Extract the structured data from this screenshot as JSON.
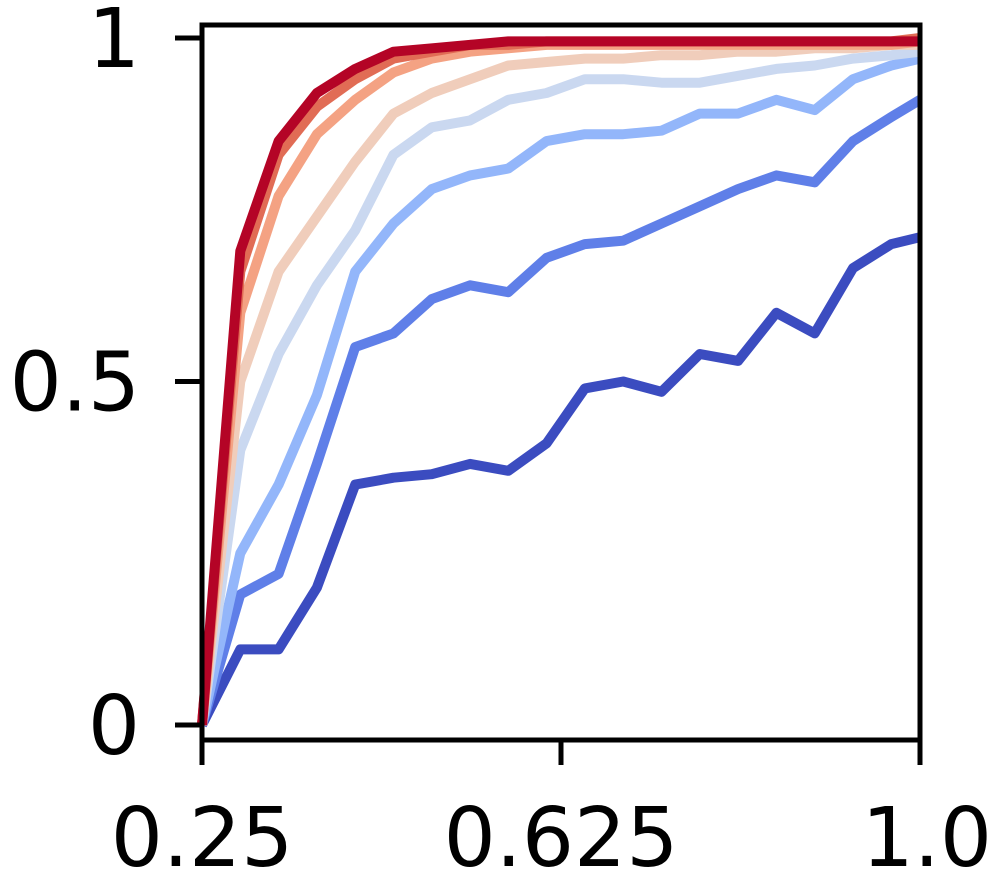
{
  "chart_data": {
    "type": "line",
    "title": "",
    "xlabel": "",
    "ylabel": "",
    "xlim": [
      0.25,
      1.0
    ],
    "ylim": [
      0,
      1
    ],
    "x_ticks": [
      {
        "value": 0.25,
        "label": "0.25"
      },
      {
        "value": 0.625,
        "label": "0.625"
      },
      {
        "value": 1.0,
        "label": "1.0"
      }
    ],
    "y_ticks": [
      {
        "value": 0,
        "label": "0"
      },
      {
        "value": 0.5,
        "label": "0.5"
      },
      {
        "value": 1,
        "label": "1"
      }
    ],
    "grid": false,
    "legend": "none",
    "x": [
      0.25,
      0.29,
      0.33,
      0.37,
      0.41,
      0.45,
      0.49,
      0.53,
      0.57,
      0.61,
      0.65,
      0.69,
      0.73,
      0.77,
      0.81,
      0.85,
      0.89,
      0.93,
      0.97,
      1.0
    ],
    "series": [
      {
        "color": "#3b4cc0",
        "values": [
          0.0,
          0.11,
          0.11,
          0.2,
          0.35,
          0.36,
          0.365,
          0.38,
          0.37,
          0.41,
          0.49,
          0.5,
          0.485,
          0.54,
          0.53,
          0.6,
          0.57,
          0.665,
          0.7,
          0.71
        ]
      },
      {
        "color": "#5f7fe8",
        "values": [
          0.0,
          0.19,
          0.22,
          0.38,
          0.55,
          0.57,
          0.62,
          0.64,
          0.63,
          0.68,
          0.7,
          0.705,
          0.73,
          0.755,
          0.78,
          0.8,
          0.79,
          0.85,
          0.885,
          0.91
        ]
      },
      {
        "color": "#93b6fa",
        "values": [
          0.0,
          0.25,
          0.35,
          0.48,
          0.66,
          0.73,
          0.78,
          0.8,
          0.81,
          0.85,
          0.86,
          0.86,
          0.865,
          0.89,
          0.89,
          0.91,
          0.895,
          0.94,
          0.96,
          0.97
        ]
      },
      {
        "color": "#cad8f0",
        "values": [
          0.0,
          0.4,
          0.54,
          0.64,
          0.72,
          0.83,
          0.87,
          0.88,
          0.91,
          0.92,
          0.94,
          0.94,
          0.935,
          0.935,
          0.945,
          0.955,
          0.96,
          0.97,
          0.975,
          0.98
        ]
      },
      {
        "color": "#f0cdbb",
        "values": [
          0.0,
          0.5,
          0.66,
          0.74,
          0.82,
          0.89,
          0.92,
          0.94,
          0.96,
          0.965,
          0.97,
          0.97,
          0.975,
          0.975,
          0.98,
          0.98,
          0.985,
          0.985,
          0.99,
          0.99
        ]
      },
      {
        "color": "#f4a283",
        "values": [
          0.0,
          0.6,
          0.77,
          0.86,
          0.91,
          0.95,
          0.97,
          0.98,
          0.985,
          0.99,
          0.99,
          0.99,
          0.99,
          0.99,
          0.99,
          0.99,
          0.99,
          0.99,
          0.99,
          0.995
        ]
      },
      {
        "color": "#e16c55",
        "values": [
          0.0,
          0.66,
          0.83,
          0.9,
          0.94,
          0.97,
          0.98,
          0.99,
          0.99,
          0.995,
          0.995,
          0.995,
          0.995,
          0.995,
          0.995,
          0.995,
          0.995,
          0.995,
          0.995,
          1.0
        ]
      },
      {
        "color": "#b40426",
        "values": [
          0.0,
          0.69,
          0.85,
          0.92,
          0.955,
          0.98,
          0.985,
          0.99,
          0.995,
          0.995,
          0.995,
          0.995,
          0.995,
          0.995,
          0.995,
          0.995,
          0.995,
          0.995,
          0.995,
          0.995
        ]
      }
    ]
  }
}
